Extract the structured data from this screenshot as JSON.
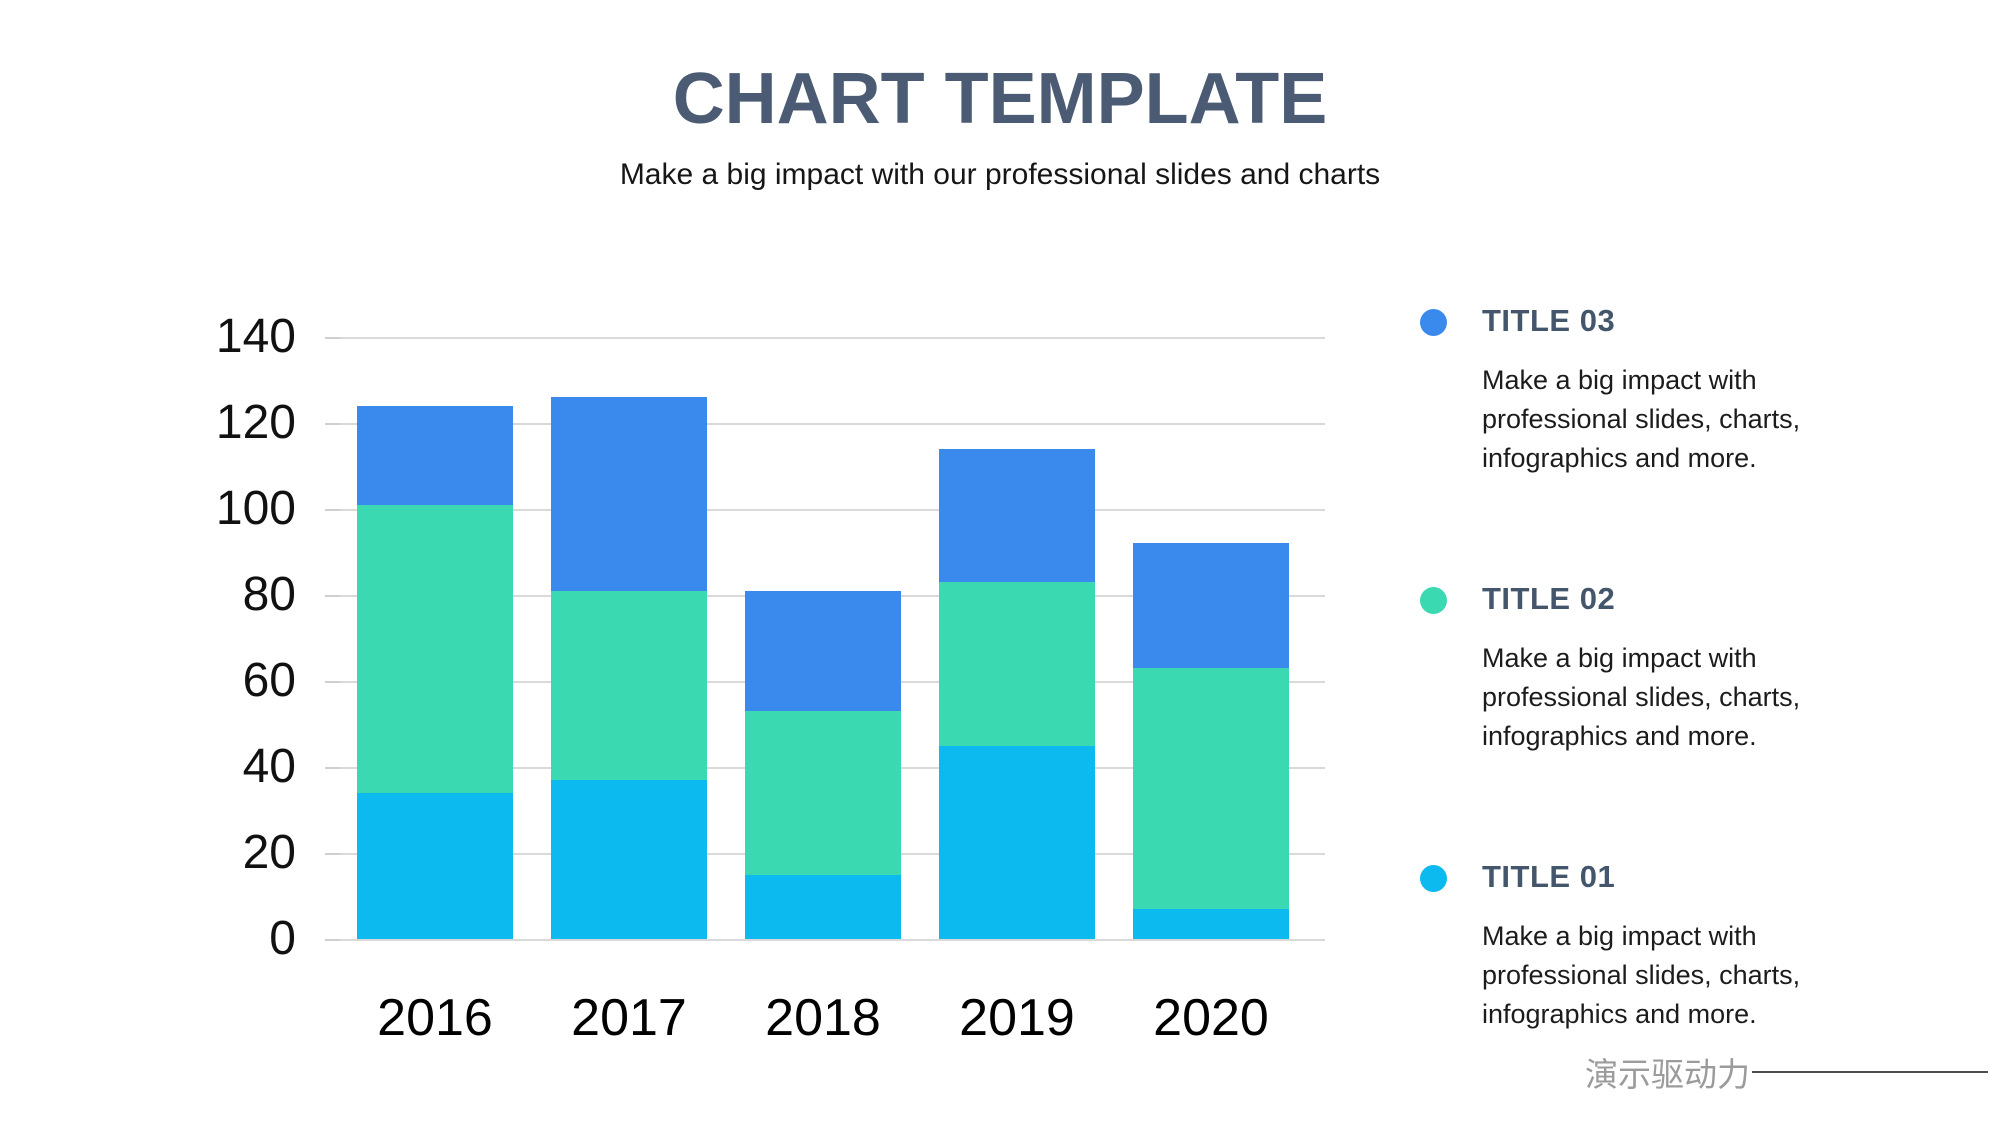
{
  "slide": {
    "title": "CHART TEMPLATE",
    "subtitle": "Make a big impact with our professional slides and charts",
    "watermark": "演示驱动力"
  },
  "colors": {
    "title_text": "#4A5B73",
    "series_title01_cyan": "#0CBAEF",
    "series_title02_teal": "#3BD9B1",
    "series_title03_blue": "#3A89EC",
    "gridline": "#D9D9D9",
    "axis_text": "#111111",
    "legend_title_text": "#44566B",
    "watermark_text": "#9B9B9B"
  },
  "chart_data": {
    "type": "bar",
    "stacked": true,
    "title": "",
    "xlabel": "",
    "ylabel": "",
    "categories": [
      "2016",
      "2017",
      "2018",
      "2019",
      "2020"
    ],
    "series": [
      {
        "name": "TITLE 01",
        "color": "#0CBAEF",
        "values": [
          34,
          37,
          15,
          45,
          7
        ]
      },
      {
        "name": "TITLE 02",
        "color": "#3BD9B1",
        "values": [
          67,
          44,
          38,
          38,
          56
        ]
      },
      {
        "name": "TITLE 03",
        "color": "#3A89EC",
        "values": [
          23,
          45,
          28,
          31,
          29
        ]
      }
    ],
    "stack_totals": [
      124,
      126,
      81,
      114,
      92
    ],
    "ylim": [
      0,
      140
    ],
    "ytick_step": 20,
    "yticks": [
      0,
      20,
      40,
      60,
      80,
      100,
      120,
      140
    ],
    "grid": true,
    "legend_position": "right"
  },
  "legend": {
    "items": [
      {
        "title": "TITLE 03",
        "color": "#3A89EC",
        "description": "Make a big impact with professional slides, charts, infographics and more."
      },
      {
        "title": "TITLE 02",
        "color": "#3BD9B1",
        "description": "Make a big impact with professional slides, charts, infographics and more."
      },
      {
        "title": "TITLE 01",
        "color": "#0CBAEF",
        "description": "Make a big impact with professional slides, charts, infographics and more."
      }
    ]
  }
}
